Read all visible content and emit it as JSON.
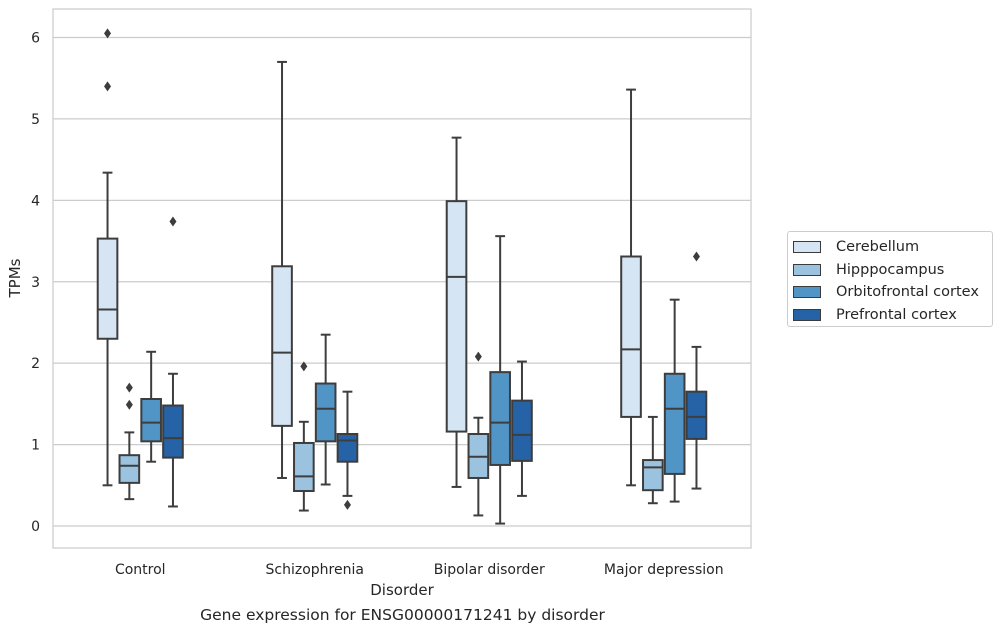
{
  "chart_data": {
    "type": "box",
    "title": "Gene expression for ENSG00000171241 by disorder",
    "xlabel": "Disorder",
    "ylabel": "TPMs",
    "ylim": [
      -0.27,
      6.35
    ],
    "yticks": [
      0,
      1,
      2,
      3,
      4,
      5,
      6
    ],
    "grid": "horizontal",
    "legend_position": "right",
    "categories": [
      "Control",
      "Schizophrenia",
      "Bipolar disorder",
      "Major depression"
    ],
    "series": [
      {
        "name": "Cerebellum",
        "color": "#d6e5f4",
        "boxes": [
          {
            "whislo": 0.5,
            "q1": 2.3,
            "med": 2.66,
            "q3": 3.53,
            "whishi": 4.34,
            "fliers": [
              5.4,
              6.05
            ]
          },
          {
            "whislo": 0.59,
            "q1": 1.23,
            "med": 2.13,
            "q3": 3.19,
            "whishi": 5.7,
            "fliers": []
          },
          {
            "whislo": 0.48,
            "q1": 1.16,
            "med": 3.06,
            "q3": 3.99,
            "whishi": 4.77,
            "fliers": []
          },
          {
            "whislo": 0.5,
            "q1": 1.34,
            "med": 2.17,
            "q3": 3.31,
            "whishi": 5.36,
            "fliers": []
          }
        ]
      },
      {
        "name": "Hipppocampus",
        "color": "#9bc3e0",
        "boxes": [
          {
            "whislo": 0.33,
            "q1": 0.53,
            "med": 0.74,
            "q3": 0.87,
            "whishi": 1.15,
            "fliers": [
              1.49,
              1.7
            ]
          },
          {
            "whislo": 0.19,
            "q1": 0.43,
            "med": 0.61,
            "q3": 1.02,
            "whishi": 1.28,
            "fliers": [
              1.96
            ]
          },
          {
            "whislo": 0.13,
            "q1": 0.59,
            "med": 0.85,
            "q3": 1.13,
            "whishi": 1.33,
            "fliers": [
              2.08
            ]
          },
          {
            "whislo": 0.28,
            "q1": 0.44,
            "med": 0.72,
            "q3": 0.81,
            "whishi": 1.34,
            "fliers": []
          }
        ]
      },
      {
        "name": "Orbitofrontal cortex",
        "color": "#5194c6",
        "boxes": [
          {
            "whislo": 0.79,
            "q1": 1.04,
            "med": 1.27,
            "q3": 1.56,
            "whishi": 2.14,
            "fliers": []
          },
          {
            "whislo": 0.51,
            "q1": 1.04,
            "med": 1.44,
            "q3": 1.75,
            "whishi": 2.35,
            "fliers": []
          },
          {
            "whislo": 0.03,
            "q1": 0.75,
            "med": 1.27,
            "q3": 1.89,
            "whishi": 3.56,
            "fliers": []
          },
          {
            "whislo": 0.3,
            "q1": 0.64,
            "med": 1.44,
            "q3": 1.87,
            "whishi": 2.78,
            "fliers": []
          }
        ]
      },
      {
        "name": "Prefrontal cortex",
        "color": "#2563a6",
        "boxes": [
          {
            "whislo": 0.24,
            "q1": 0.84,
            "med": 1.08,
            "q3": 1.48,
            "whishi": 1.87,
            "fliers": [
              3.74
            ]
          },
          {
            "whislo": 0.37,
            "q1": 0.79,
            "med": 1.05,
            "q3": 1.13,
            "whishi": 1.65,
            "fliers": [
              0.26
            ]
          },
          {
            "whislo": 0.37,
            "q1": 0.8,
            "med": 1.12,
            "q3": 1.54,
            "whishi": 2.02,
            "fliers": []
          },
          {
            "whislo": 0.46,
            "q1": 1.07,
            "med": 1.34,
            "q3": 1.65,
            "whishi": 2.2,
            "fliers": [
              3.31
            ]
          }
        ]
      }
    ]
  }
}
